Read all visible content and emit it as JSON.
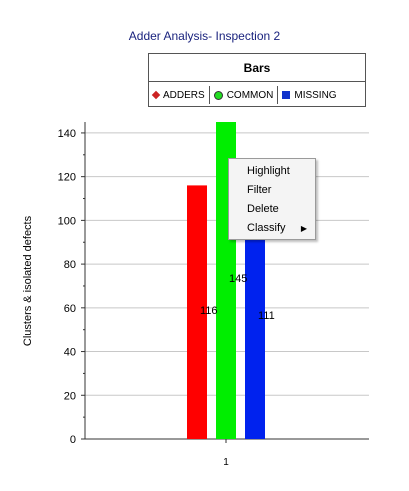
{
  "chart_title": "Adder Analysis- Inspection 2",
  "legend": {
    "title": "Bars",
    "items": [
      {
        "label": "ADDERS",
        "color": "#cc2222",
        "marker": "diamond"
      },
      {
        "label": "COMMON",
        "color": "#22dd22",
        "marker": "circle"
      },
      {
        "label": "MISSING",
        "color": "#1133cc",
        "marker": "square"
      }
    ]
  },
  "context_menu": {
    "items": [
      {
        "label": "Highlight"
      },
      {
        "label": "Filter"
      },
      {
        "label": "Delete"
      },
      {
        "label": "Classify",
        "submenu_icon": "triangle-right-icon"
      }
    ]
  },
  "chart_data": {
    "type": "bar",
    "categories": [
      "1"
    ],
    "series": [
      {
        "name": "ADDERS",
        "values": [
          116
        ],
        "color": "#ff0000"
      },
      {
        "name": "COMMON",
        "values": [
          145
        ],
        "color": "#00ee00"
      },
      {
        "name": "MISSING",
        "values": [
          111
        ],
        "color": "#0022ee"
      }
    ],
    "data_labels": [
      "116",
      "145",
      "111"
    ],
    "ylabel": "Clusters & isolated defects",
    "xlabel": "",
    "ylim": [
      0,
      145
    ],
    "yticks": [
      0,
      20,
      40,
      60,
      80,
      100,
      120,
      140
    ],
    "grid": true
  }
}
